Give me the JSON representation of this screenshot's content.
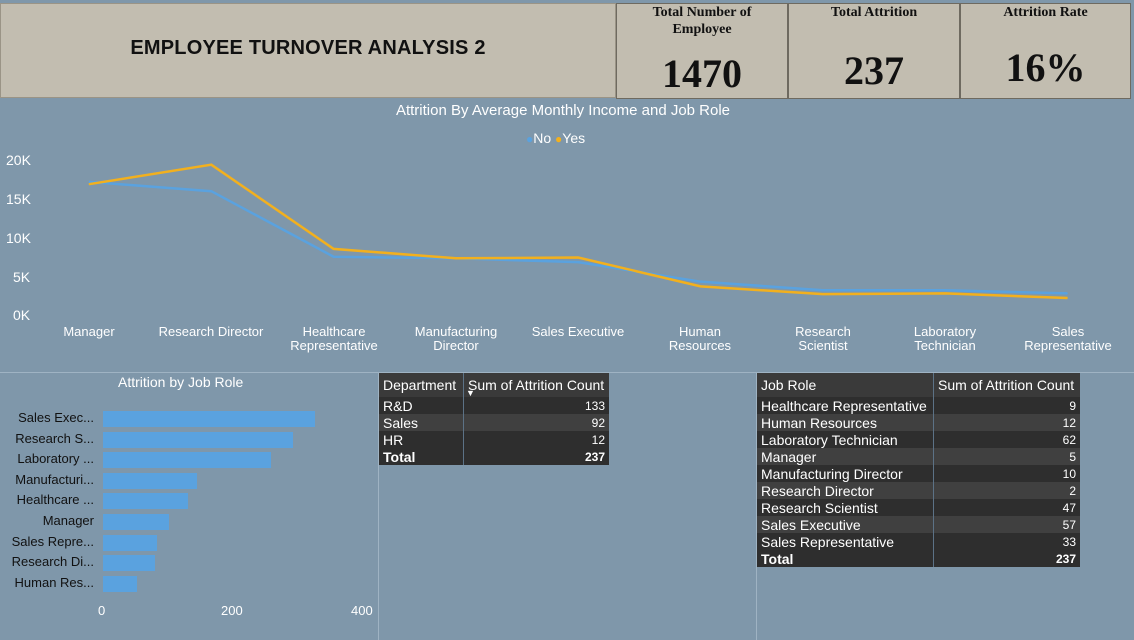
{
  "header": {
    "title": "EMPLOYEE TURNOVER ANALYSIS 2"
  },
  "kpis": [
    {
      "label": "Total Number of Employee",
      "value": "1470"
    },
    {
      "label": "Total Attrition",
      "value": "237"
    },
    {
      "label": "Attrition Rate",
      "value": "16%"
    }
  ],
  "line_chart": {
    "title": "Attrition By Average Monthly Income and Job Role",
    "legend_no": "No",
    "legend_yes": "Yes",
    "yticks": [
      "20K",
      "15K",
      "10K",
      "5K",
      "0K"
    ],
    "xlabels": [
      "Manager",
      "Research Director",
      "Healthcare Representative",
      "Manufacturing Director",
      "Sales Executive",
      "Human Resources",
      "Research Scientist",
      "Laboratory Technician",
      "Sales Representative"
    ],
    "colors": {
      "No": "#5aa2df",
      "Yes": "#f2b01e"
    }
  },
  "bar_chart": {
    "title": "Attrition by Job Role",
    "labels": [
      "Sales Exec...",
      "Research S...",
      "Laboratory ...",
      "Manufacturi...",
      "Healthcare ...",
      "Manager",
      "Sales Repre...",
      "Research Di...",
      "Human Res..."
    ],
    "xticks": [
      "0",
      "200",
      "400"
    ]
  },
  "dept_table": {
    "headers": [
      "Department",
      "Sum of Attrition Count"
    ],
    "rows": [
      [
        "R&D",
        "133"
      ],
      [
        "Sales",
        "92"
      ],
      [
        "HR",
        "12"
      ]
    ],
    "total": [
      "Total",
      "237"
    ]
  },
  "role_table": {
    "headers": [
      "Job Role",
      "Sum of Attrition Count"
    ],
    "rows": [
      [
        "Healthcare Representative",
        "9"
      ],
      [
        "Human Resources",
        "12"
      ],
      [
        "Laboratory Technician",
        "62"
      ],
      [
        "Manager",
        "5"
      ],
      [
        "Manufacturing Director",
        "10"
      ],
      [
        "Research Director",
        "2"
      ],
      [
        "Research Scientist",
        "47"
      ],
      [
        "Sales Executive",
        "57"
      ],
      [
        "Sales Representative",
        "33"
      ]
    ],
    "total": [
      "Total",
      "237"
    ]
  },
  "chart_data": [
    {
      "type": "line",
      "title": "Attrition By Average Monthly Income and Job Role",
      "categories": [
        "Manager",
        "Research Director",
        "Healthcare Representative",
        "Manufacturing Director",
        "Sales Executive",
        "Human Resources",
        "Research Scientist",
        "Laboratory Technician",
        "Sales Representative"
      ],
      "series": [
        {
          "name": "No",
          "values": [
            17200,
            16000,
            7600,
            7400,
            6900,
            4400,
            3300,
            3300,
            2900
          ]
        },
        {
          "name": "Yes",
          "values": [
            16900,
            19400,
            8600,
            7400,
            7500,
            3800,
            2800,
            2900,
            2300
          ]
        }
      ],
      "ylim": [
        0,
        20000
      ],
      "legend": "top-center"
    },
    {
      "type": "bar",
      "orientation": "horizontal",
      "title": "Attrition by Job Role",
      "categories": [
        "Sales Executive",
        "Research Scientist",
        "Laboratory Technician",
        "Manufacturing Director",
        "Healthcare Representative",
        "Manager",
        "Sales Representative",
        "Research Director",
        "Human Resources"
      ],
      "values": [
        326,
        292,
        259,
        145,
        131,
        102,
        83,
        80,
        52
      ],
      "xlim": [
        0,
        420
      ]
    }
  ]
}
